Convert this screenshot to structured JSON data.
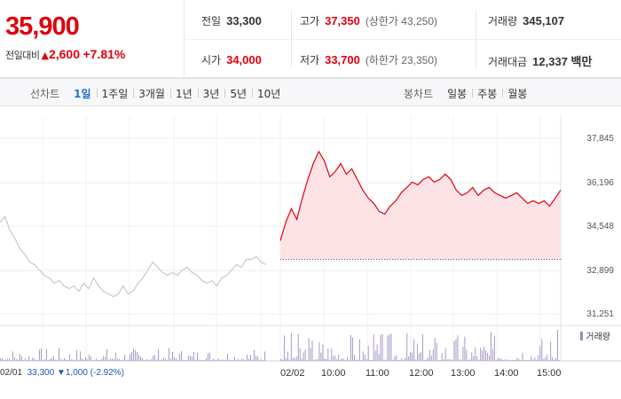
{
  "summary": {
    "price": "35,900",
    "change_label": "전일대비",
    "change_icon": "up-triangle-icon",
    "change_value": "2,600",
    "change_percent": "+7.81%",
    "prev_close_label": "전일",
    "prev_close": "33,300",
    "open_label": "시가",
    "open": "34,000",
    "high_label": "고가",
    "high": "37,350",
    "upper_limit": "(상한가 43,250)",
    "low_label": "저가",
    "low": "33,700",
    "lower_limit": "(하한가 23,350)",
    "volume_label": "거래량",
    "volume": "345,107",
    "amount_label": "거래대금",
    "amount": "12,337 백만"
  },
  "toolbar": {
    "line_label": "선차트",
    "line_items": [
      "1일",
      "1주일",
      "3개월",
      "1년",
      "3년",
      "5년",
      "10년"
    ],
    "line_active": 0,
    "candle_label": "봉차트",
    "candle_items": [
      "일봉",
      "주봉",
      "월봉"
    ]
  },
  "colors": {
    "up": "#e0000f",
    "down": "#1f56b8",
    "prev_day_line": "#c8c8c8",
    "fill": "#fde3e6",
    "volume": "#9a86c6"
  },
  "chart_data": {
    "type": "line",
    "y_ticks": [
      "37,845",
      "36,196",
      "34,548",
      "32,899",
      "31,251"
    ],
    "ylim": [
      31251,
      37845
    ],
    "reference_line": 33300,
    "x_labels": [
      "02/01",
      "02/02",
      "10:00",
      "11:00",
      "12:00",
      "13:00",
      "14:00",
      "15:00"
    ],
    "prev_day_summary": {
      "close": "33,300",
      "change": "▼1,000",
      "percent": "(-2.92%)"
    },
    "volume_legend": "거래량",
    "series": [
      {
        "session": "02/01",
        "values": [
          34700,
          34900,
          34400,
          34100,
          33700,
          33500,
          33200,
          33100,
          32900,
          32700,
          32600,
          32400,
          32500,
          32300,
          32200,
          32300,
          32100,
          32400,
          32200,
          32600,
          32300,
          32100,
          32000,
          31900,
          32000,
          32300,
          32000,
          32100,
          32400,
          32600,
          32900,
          33200,
          33000,
          32800,
          32700,
          32800,
          32700,
          32900,
          33000,
          32800,
          32700,
          32500,
          32400,
          32500,
          32300,
          32600,
          32700,
          32900,
          33100,
          33000,
          33300,
          33300,
          33400,
          33200,
          33100
        ]
      },
      {
        "session": "02/02",
        "values": [
          34000,
          34700,
          35200,
          34800,
          35600,
          36300,
          36900,
          37350,
          37000,
          36400,
          36600,
          36900,
          36500,
          36700,
          36300,
          35900,
          35600,
          35400,
          35100,
          35000,
          35300,
          35500,
          35800,
          36000,
          36200,
          36100,
          36300,
          36400,
          36200,
          36300,
          36500,
          36300,
          35900,
          35700,
          35800,
          36000,
          35700,
          35900,
          36000,
          35800,
          35700,
          35600,
          35700,
          35800,
          35600,
          35400,
          35500,
          35400,
          35500,
          35300,
          35600,
          35900
        ]
      }
    ]
  }
}
